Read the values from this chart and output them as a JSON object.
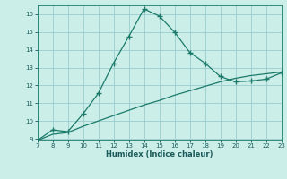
{
  "title": "",
  "xlabel": "Humidex (Indice chaleur)",
  "ylabel": "",
  "background_color": "#cceee8",
  "grid_color": "#99cccc",
  "line_color": "#1a7a6a",
  "xlim": [
    7,
    23
  ],
  "ylim": [
    9,
    16.5
  ],
  "xticks": [
    7,
    8,
    9,
    10,
    11,
    12,
    13,
    14,
    15,
    16,
    17,
    18,
    19,
    20,
    21,
    22,
    23
  ],
  "yticks": [
    9,
    10,
    11,
    12,
    13,
    14,
    15,
    16
  ],
  "curve1_x": [
    7,
    8,
    9,
    10,
    11,
    12,
    13,
    14,
    15,
    16,
    17,
    18,
    19,
    20,
    21,
    22,
    23
  ],
  "curve1_y": [
    8.9,
    9.5,
    9.4,
    10.4,
    11.55,
    13.25,
    14.75,
    16.3,
    15.9,
    15.0,
    13.85,
    13.25,
    12.5,
    12.2,
    12.25,
    12.35,
    12.7
  ],
  "curve2_x": [
    7,
    8,
    9,
    10,
    11,
    12,
    13,
    14,
    15,
    16,
    17,
    18,
    19,
    20,
    21,
    22,
    23
  ],
  "curve2_y": [
    8.9,
    9.25,
    9.35,
    9.7,
    10.0,
    10.3,
    10.6,
    10.9,
    11.15,
    11.45,
    11.7,
    11.95,
    12.2,
    12.4,
    12.55,
    12.65,
    12.75
  ]
}
